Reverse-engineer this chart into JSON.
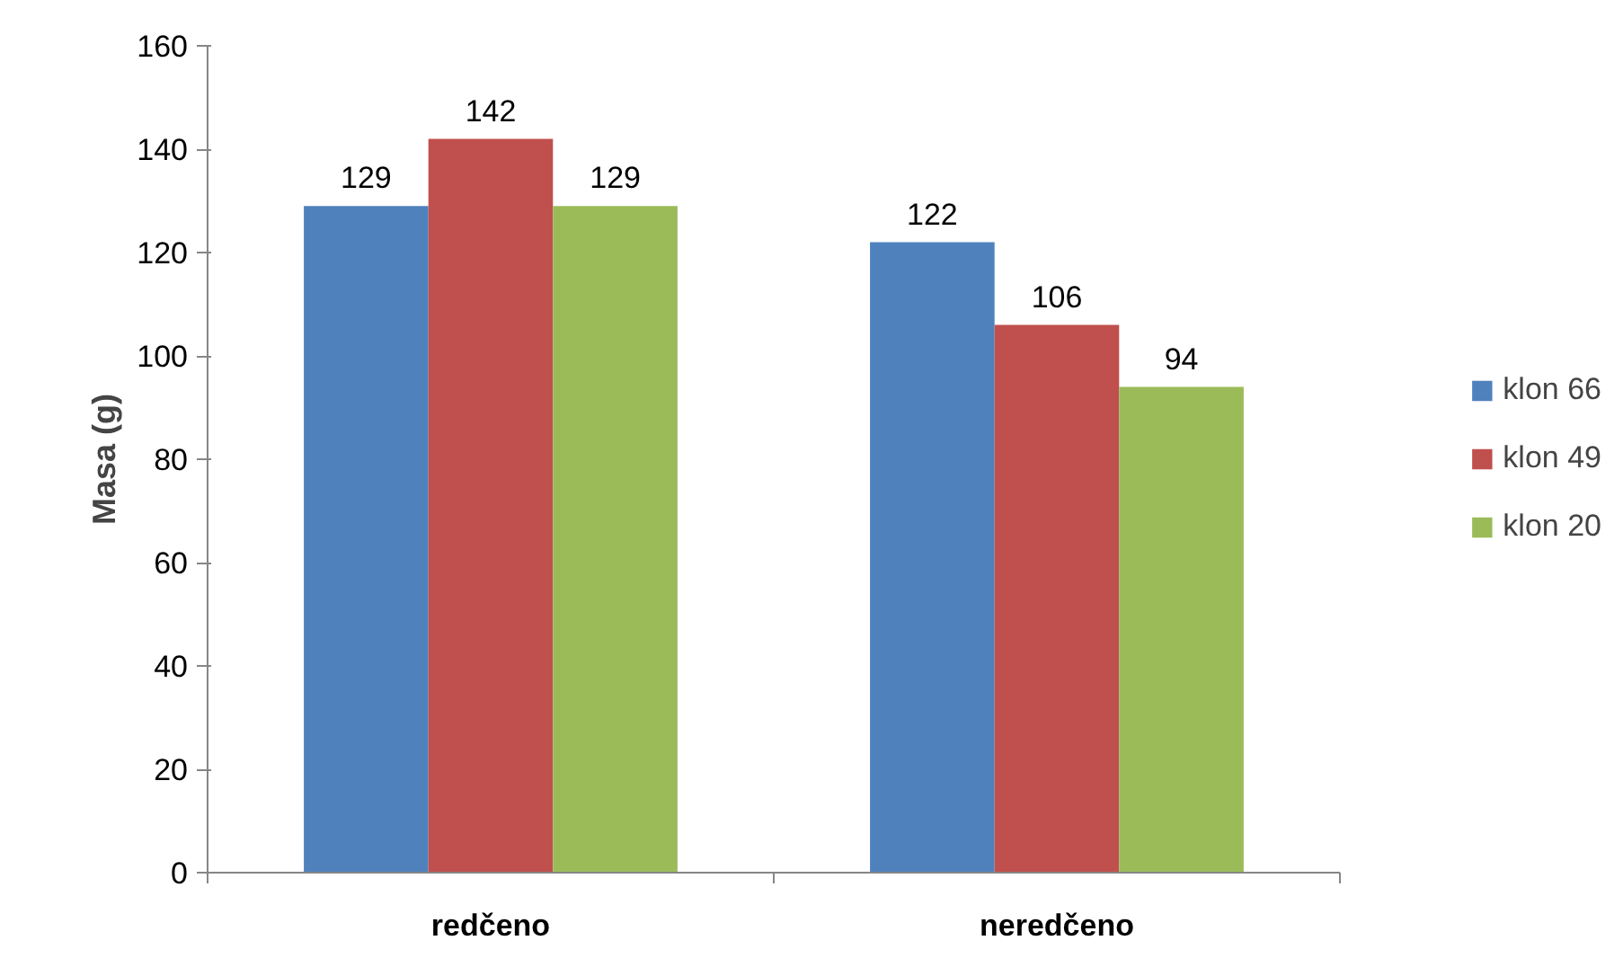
{
  "chart_data": {
    "type": "bar",
    "ylabel": "Masa (g)",
    "categories": [
      "redčeno",
      "neredčeno"
    ],
    "series": [
      {
        "name": "klon 66",
        "color": "#4f81bd",
        "values": [
          129,
          122
        ]
      },
      {
        "name": "klon 49",
        "color": "#c0504d",
        "values": [
          142,
          106
        ]
      },
      {
        "name": "klon 20",
        "color": "#9bbb59",
        "values": [
          129,
          94
        ]
      }
    ],
    "ylim": [
      0,
      160
    ],
    "yticks": [
      0,
      20,
      40,
      60,
      80,
      100,
      120,
      140,
      160
    ],
    "grid": false,
    "legend": "right",
    "data_labels": true
  }
}
